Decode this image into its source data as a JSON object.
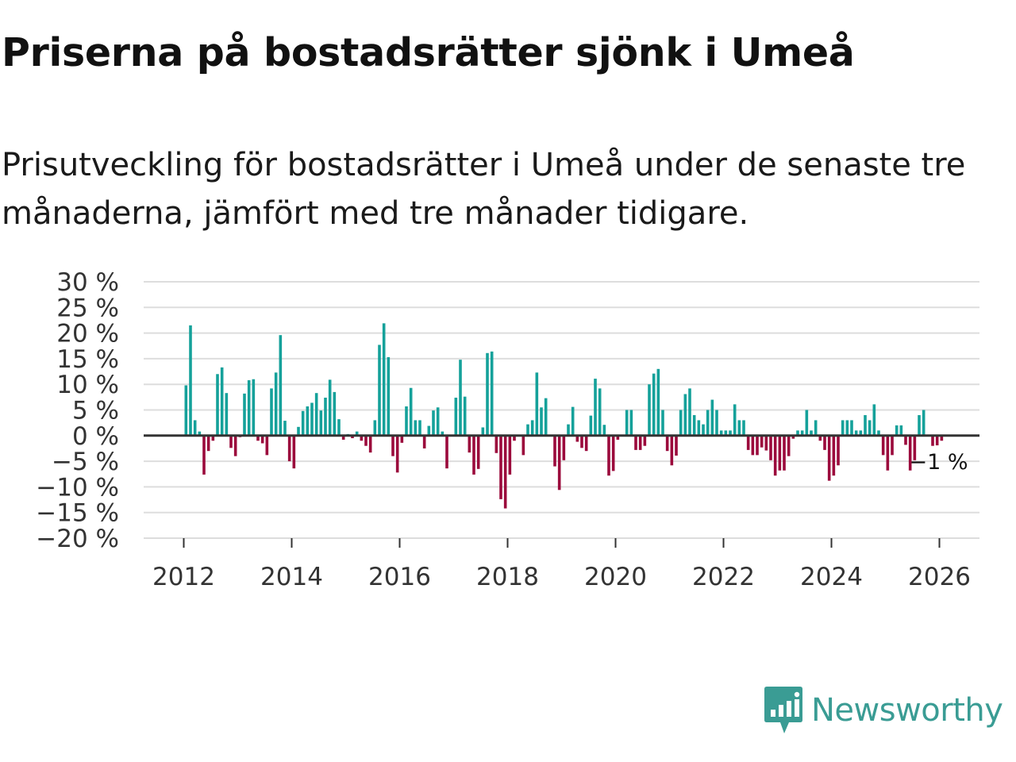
{
  "title": "Priserna på bostadsrätter sjönk i Umeå",
  "subtitle": "Prisutveckling för bostadsrätter i Umeå under de senaste tre månaderna, jämfört med tre månader tidigare.",
  "brand": "Newsworthy",
  "colors": {
    "positive": "#15a19a",
    "negative": "#9b0a3c",
    "grid": "#dddddd",
    "zero": "#333333"
  },
  "chart_data": {
    "type": "bar",
    "start": {
      "year": 2012,
      "month": 1
    },
    "ylim": [
      -20,
      30
    ],
    "yticks": [
      30,
      25,
      20,
      15,
      10,
      5,
      0,
      -5,
      -10,
      -15,
      -20
    ],
    "ytick_labels": [
      "30 %",
      "25 %",
      "20 %",
      "15 %",
      "10 %",
      "5 %",
      "0 %",
      "−5 %",
      "−10 %",
      "−15 %",
      "−20 %"
    ],
    "xticks": [
      2012,
      2014,
      2016,
      2018,
      2020,
      2022,
      2024,
      2026
    ],
    "xtick_labels": [
      "2012",
      "2014",
      "2016",
      "2018",
      "2020",
      "2022",
      "2024",
      "2026"
    ],
    "end_label": "−1 %",
    "values": [
      9.8,
      21.5,
      3.0,
      0.8,
      -7.6,
      -3.0,
      -1.0,
      12.0,
      13.3,
      8.3,
      -2.4,
      -4.0,
      -0.3,
      8.2,
      10.8,
      11.0,
      -1.0,
      -1.5,
      -3.8,
      9.2,
      12.3,
      19.6,
      2.9,
      -5.0,
      -6.4,
      1.7,
      4.8,
      5.7,
      6.4,
      8.3,
      4.9,
      7.4,
      10.9,
      8.5,
      3.2,
      -0.8,
      0.3,
      -0.5,
      0.8,
      -1.0,
      -2.0,
      -3.3,
      3.0,
      17.7,
      21.9,
      15.3,
      -4.0,
      -7.2,
      -1.4,
      5.7,
      9.3,
      3.0,
      3.0,
      -2.5,
      1.9,
      4.9,
      5.5,
      0.8,
      -6.4,
      0.0,
      7.4,
      14.8,
      7.6,
      -3.3,
      -7.6,
      -6.5,
      1.6,
      16.1,
      16.4,
      -3.4,
      -12.4,
      -14.2,
      -7.6,
      -1.0,
      0.0,
      -3.8,
      2.2,
      3.0,
      12.3,
      5.5,
      7.3,
      0.0,
      -6.0,
      -10.6,
      -4.8,
      2.2,
      5.6,
      -1.2,
      -2.4,
      -3.0,
      3.9,
      11.1,
      9.2,
      2.1,
      -7.8,
      -6.9,
      -0.8,
      0.0,
      5.0,
      5.0,
      -2.8,
      -2.8,
      -2.0,
      10.0,
      12.1,
      13.0,
      5.0,
      -3.0,
      -5.8,
      -3.9,
      5.0,
      8.1,
      9.2,
      4.0,
      3.0,
      2.2,
      5.0,
      7.0,
      5.0,
      1.0,
      1.0,
      1.0,
      6.1,
      3.0,
      3.0,
      -2.8,
      -3.8,
      -3.8,
      -2.3,
      -2.9,
      -4.8,
      -7.8,
      -6.8,
      -6.8,
      -4.0,
      -0.6,
      1.0,
      1.0,
      5.0,
      1.0,
      3.0,
      -1.0,
      -2.8,
      -8.8,
      -7.8,
      -5.8,
      3.0,
      3.0,
      3.0,
      1.0,
      1.0,
      4.0,
      3.0,
      6.1,
      1.0,
      -3.8,
      -6.8,
      -3.8,
      2.0,
      2.0,
      -1.8,
      -6.8,
      -4.8,
      4.0,
      5.0,
      0.0,
      -2.0,
      -1.9,
      -1.0
    ]
  }
}
